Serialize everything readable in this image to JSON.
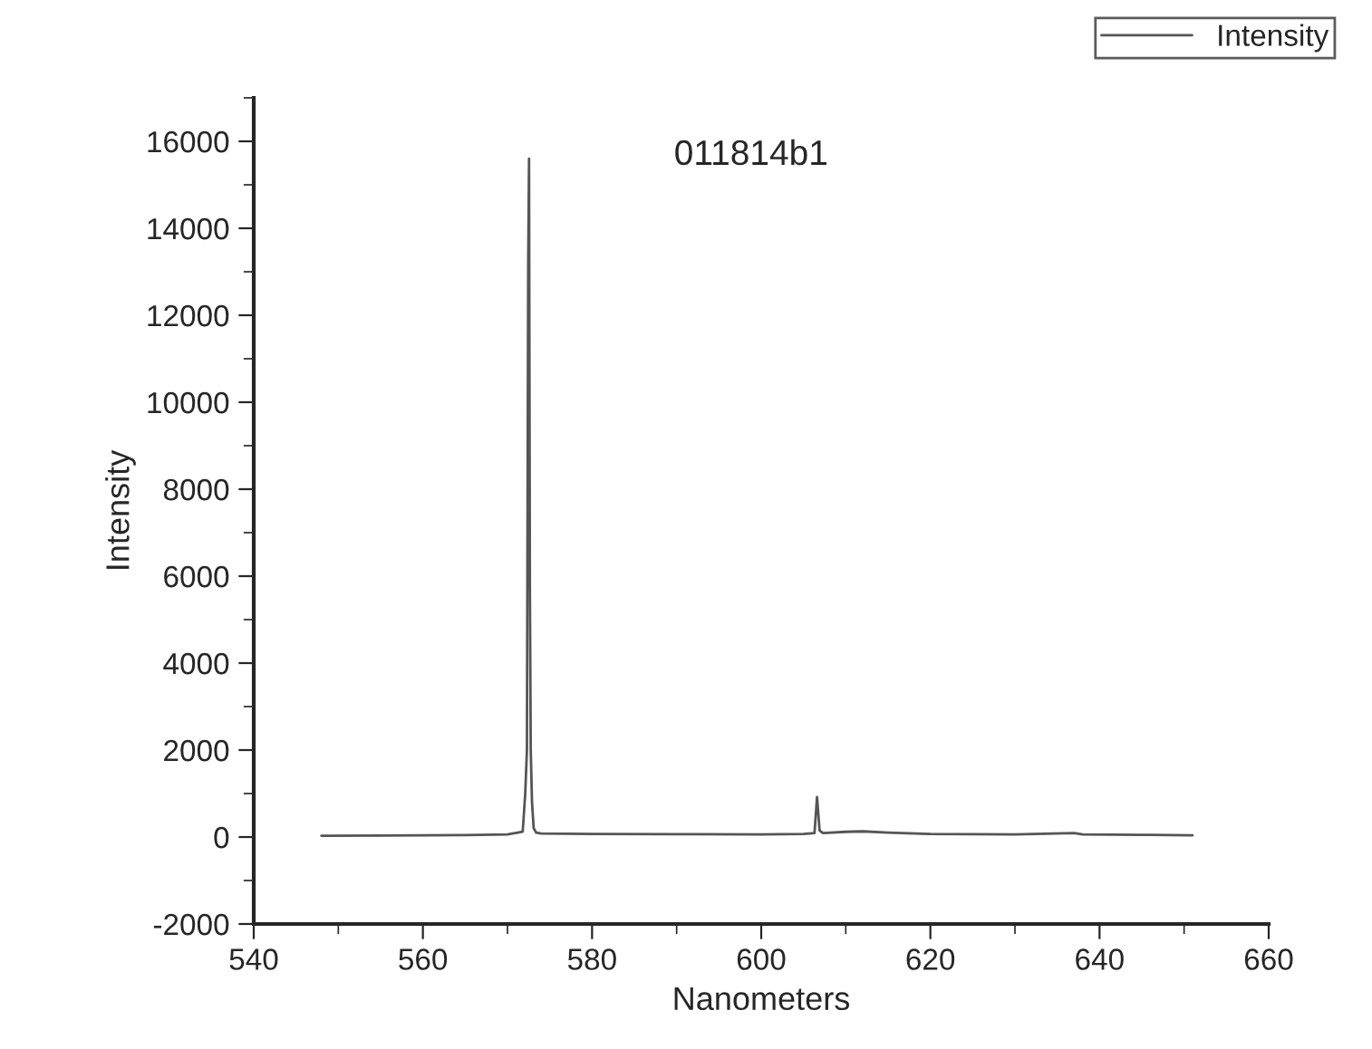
{
  "chart_data": {
    "type": "line",
    "title": "011814b1",
    "xlabel": "Nanometers",
    "ylabel": "Intensity",
    "xlim": [
      540,
      660
    ],
    "xticks": [
      540,
      560,
      580,
      600,
      620,
      640,
      660
    ],
    "ylim": [
      -2000,
      17000
    ],
    "yticks": [
      -2000,
      0,
      2000,
      4000,
      6000,
      8000,
      10000,
      12000,
      14000,
      16000
    ],
    "grid": false,
    "legend": "top right",
    "marker": "none",
    "line_style": "solid",
    "series": [
      {
        "name": "Intensity",
        "color": "#555555",
        "x": [
          548,
          555,
          560,
          565,
          570,
          571.8,
          572.1,
          572.3,
          572.45,
          572.55,
          572.65,
          572.75,
          572.9,
          573.1,
          573.4,
          574,
          580,
          590,
          600,
          605,
          606.3,
          606.6,
          606.9,
          607.3,
          610,
          612,
          615,
          620,
          630,
          637,
          638,
          645,
          651
        ],
        "values": [
          30,
          35,
          40,
          45,
          60,
          120,
          1000,
          2000,
          13200,
          15600,
          5700,
          2000,
          800,
          200,
          100,
          80,
          70,
          65,
          60,
          70,
          90,
          920,
          150,
          90,
          120,
          130,
          100,
          70,
          60,
          90,
          60,
          50,
          40
        ]
      }
    ]
  }
}
